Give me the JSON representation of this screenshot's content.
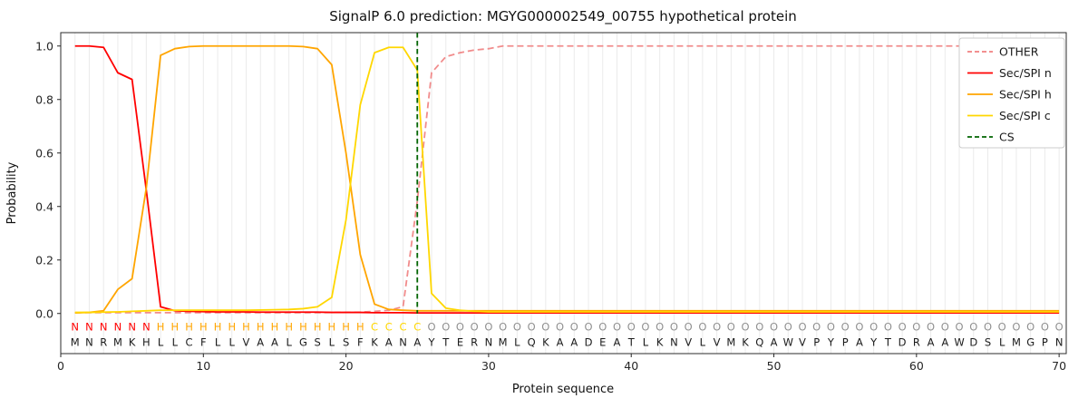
{
  "chart_data": {
    "type": "line",
    "title": "SignalP 6.0 prediction: MGYG000002549_00755 hypothetical protein",
    "xlabel": "Protein sequence",
    "ylabel": "Probability",
    "xlim": [
      0,
      70.5
    ],
    "ylim": [
      -0.15,
      1.05
    ],
    "xticks": [
      0,
      10,
      20,
      30,
      40,
      50,
      60,
      70
    ],
    "yticks": [
      "0.0",
      "0.2",
      "0.4",
      "0.6",
      "0.8",
      "1.0"
    ],
    "grid": "vertical-per-residue",
    "x_start": 1,
    "sequence": "MNRMKHLLCFLLVAALGSLSFKANAYTERNMLQKAADEATLKNVLVMKQAWVPYPAYTDRAAWDSLMGPN",
    "region_labels": "NNNNNNHHHHHHHHHHHHHHHCCCCOOOOOOOOOOOOOOOOOOOOOOOOOOOOOOOOOOOOOOOOOOOOO",
    "residue_colors": {
      "N": "#ff0000",
      "H": "#ffa500",
      "C": "#ffd700",
      "O": "#909090"
    },
    "series": [
      {
        "name": "OTHER",
        "color": "#f08080",
        "style": "dashed",
        "values": [
          0.003,
          0.003,
          0.003,
          0.003,
          0.003,
          0.003,
          0.003,
          0.003,
          0.003,
          0.003,
          0.003,
          0.003,
          0.003,
          0.003,
          0.003,
          0.003,
          0.003,
          0.003,
          0.004,
          0.004,
          0.005,
          0.008,
          0.012,
          0.025,
          0.42,
          0.9,
          0.96,
          0.975,
          0.985,
          0.99,
          1,
          1,
          1,
          1,
          1,
          1,
          1,
          1,
          1,
          1,
          1,
          1,
          1,
          1,
          1,
          1,
          1,
          1,
          1,
          1,
          1,
          1,
          1,
          1,
          1,
          1,
          1,
          1,
          1,
          1,
          1,
          1,
          1,
          1,
          1,
          1,
          1,
          1,
          1,
          1
        ]
      },
      {
        "name": "Sec/SPI n",
        "color": "#ff0000",
        "style": "solid",
        "values": [
          1,
          1,
          0.995,
          0.9,
          0.875,
          0.46,
          0.025,
          0.01,
          0.008,
          0.007,
          0.006,
          0.006,
          0.006,
          0.005,
          0.005,
          0.005,
          0.005,
          0.005,
          0.004,
          0.004,
          0.004,
          0.003,
          0.003,
          0.003,
          0.002,
          0.002,
          0.002,
          0.002,
          0.002,
          0.002,
          0.002,
          0.002,
          0.002,
          0.002,
          0.002,
          0.002,
          0.002,
          0.002,
          0.002,
          0.002,
          0.002,
          0.002,
          0.002,
          0.002,
          0.002,
          0.002,
          0.002,
          0.002,
          0.002,
          0.002,
          0.002,
          0.002,
          0.002,
          0.002,
          0.002,
          0.002,
          0.002,
          0.002,
          0.002,
          0.002,
          0.002,
          0.002,
          0.002,
          0.002,
          0.002,
          0.002,
          0.002,
          0.002,
          0.002,
          0.002
        ]
      },
      {
        "name": "Sec/SPI h",
        "color": "#ffa500",
        "style": "solid",
        "values": [
          0.002,
          0.004,
          0.01,
          0.09,
          0.13,
          0.47,
          0.965,
          0.99,
          0.998,
          1,
          1,
          1,
          1,
          1,
          1,
          1,
          0.998,
          0.99,
          0.93,
          0.6,
          0.22,
          0.035,
          0.015,
          0.012,
          0.01,
          0.01,
          0.01,
          0.01,
          0.01,
          0.01,
          0.01,
          0.01,
          0.01,
          0.01,
          0.01,
          0.01,
          0.01,
          0.01,
          0.01,
          0.01,
          0.01,
          0.01,
          0.01,
          0.01,
          0.01,
          0.01,
          0.01,
          0.01,
          0.01,
          0.01,
          0.01,
          0.01,
          0.01,
          0.01,
          0.01,
          0.01,
          0.01,
          0.01,
          0.01,
          0.01,
          0.01,
          0.01,
          0.01,
          0.01,
          0.01,
          0.01,
          0.01,
          0.01,
          0.01,
          0.01
        ]
      },
      {
        "name": "Sec/SPI c",
        "color": "#ffd700",
        "style": "solid",
        "values": [
          0.004,
          0.004,
          0.005,
          0.006,
          0.008,
          0.01,
          0.012,
          0.012,
          0.012,
          0.012,
          0.012,
          0.012,
          0.012,
          0.013,
          0.014,
          0.015,
          0.018,
          0.025,
          0.06,
          0.35,
          0.78,
          0.975,
          0.995,
          0.995,
          0.91,
          0.075,
          0.02,
          0.012,
          0.008,
          0.006,
          0.006,
          0.006,
          0.006,
          0.006,
          0.006,
          0.006,
          0.006,
          0.006,
          0.006,
          0.006,
          0.006,
          0.006,
          0.006,
          0.006,
          0.006,
          0.006,
          0.006,
          0.006,
          0.006,
          0.006,
          0.006,
          0.006,
          0.006,
          0.006,
          0.006,
          0.006,
          0.006,
          0.006,
          0.006,
          0.006,
          0.006,
          0.006,
          0.006,
          0.006,
          0.006,
          0.006,
          0.006,
          0.006,
          0.006,
          0.006
        ]
      }
    ],
    "cs": {
      "label": "CS",
      "position": 25,
      "color": "#006400",
      "style": "dashed"
    },
    "legend": {
      "position": "upper right",
      "entries": [
        {
          "label": "OTHER",
          "color": "#f08080",
          "style": "dashed"
        },
        {
          "label": "Sec/SPI n",
          "color": "#ff0000",
          "style": "solid"
        },
        {
          "label": "Sec/SPI h",
          "color": "#ffa500",
          "style": "solid"
        },
        {
          "label": "Sec/SPI c",
          "color": "#ffd700",
          "style": "solid"
        },
        {
          "label": "CS",
          "color": "#006400",
          "style": "dashed"
        }
      ]
    }
  }
}
